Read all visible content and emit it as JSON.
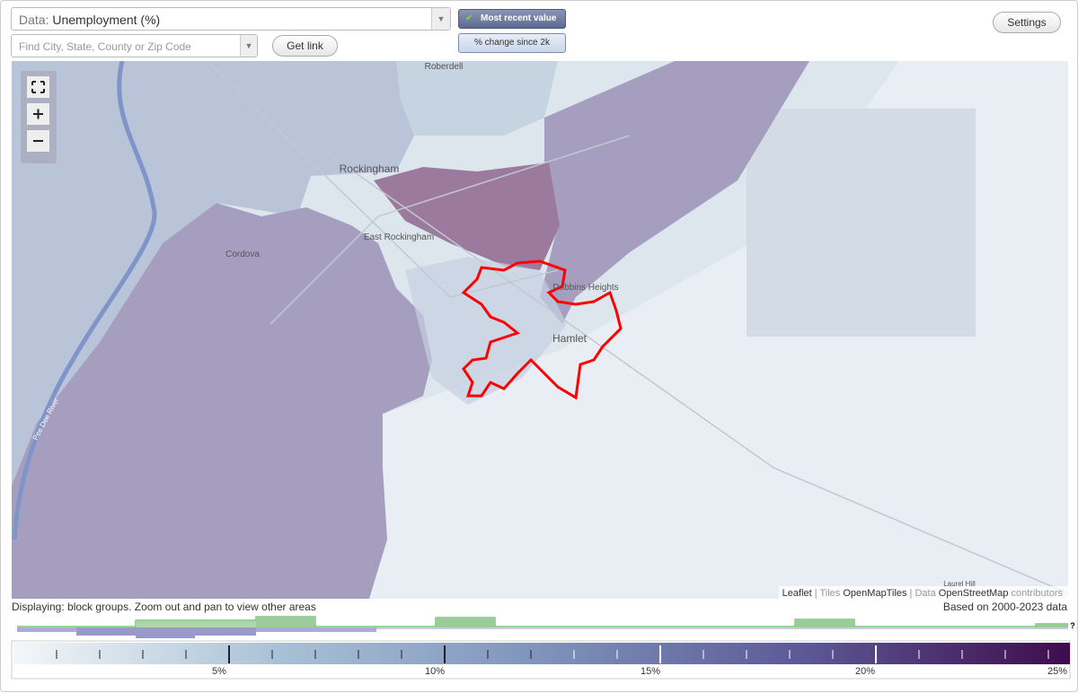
{
  "controls": {
    "data_label": "Data:",
    "data_value": "Unemployment (%)",
    "search_placeholder": "Find City, State, County or Zip Code",
    "get_link": "Get link",
    "mode_recent": "Most recent value",
    "mode_change": "% change since 2k",
    "settings": "Settings"
  },
  "map": {
    "places": [
      "Roberdell",
      "Rockingham",
      "Cordova",
      "East Rockingham",
      "Dobbins Heights",
      "Hamlet",
      "Pee Dee River",
      "Laurel Hill"
    ],
    "attribution": {
      "leaflet": "Leaflet",
      "tiles": "Tiles",
      "tiles_source": "OpenMapTiles",
      "data": "Data",
      "data_source": "OpenStreetMap",
      "contributors": "contributors"
    }
  },
  "footer": {
    "displaying": "Displaying: block groups. Zoom out and pan to view other areas",
    "based_on": "Based on 2000-2023 data",
    "help": "?"
  },
  "legend": {
    "labels": [
      "5%",
      "10%",
      "15%",
      "20%",
      "25%"
    ]
  }
}
